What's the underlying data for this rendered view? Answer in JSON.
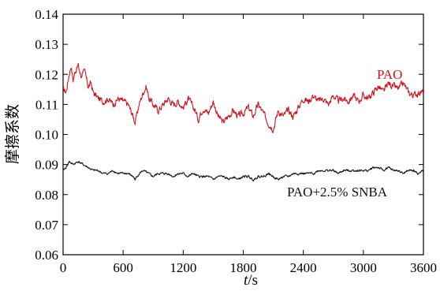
{
  "chart_data": {
    "type": "line",
    "xlabel": "t/s",
    "xlabel_italic": "t",
    "xlabel_rest": "/s",
    "ylabel": "摩擦系数",
    "xlim": [
      0,
      3600
    ],
    "ylim": [
      0.06,
      0.14
    ],
    "xticks": [
      0,
      600,
      1200,
      1800,
      2400,
      3000,
      3600
    ],
    "yticks": [
      0.06,
      0.07,
      0.08,
      0.09,
      0.1,
      0.11,
      0.12,
      0.13,
      0.14
    ],
    "yticklabels": [
      "0.06",
      "0.07",
      "0.08",
      "0.09",
      "0.10",
      "0.11",
      "0.12",
      "0.13",
      "0.14"
    ],
    "grid": false,
    "series": [
      {
        "name": "PAO",
        "color": "#d0141e",
        "x": [
          0,
          30,
          60,
          80,
          100,
          120,
          150,
          180,
          200,
          220,
          250,
          280,
          300,
          350,
          400,
          450,
          500,
          550,
          600,
          650,
          700,
          720,
          760,
          800,
          830,
          860,
          900,
          950,
          1000,
          1050,
          1100,
          1150,
          1200,
          1250,
          1280,
          1320,
          1350,
          1400,
          1450,
          1500,
          1550,
          1600,
          1650,
          1700,
          1750,
          1800,
          1850,
          1900,
          1950,
          2000,
          2050,
          2100,
          2150,
          2200,
          2250,
          2300,
          2350,
          2400,
          2450,
          2500,
          2550,
          2600,
          2650,
          2700,
          2750,
          2800,
          2850,
          2900,
          2950,
          3000,
          3050,
          3100,
          3150,
          3200,
          3250,
          3300,
          3350,
          3400,
          3450,
          3500,
          3550,
          3600
        ],
        "values": [
          0.115,
          0.114,
          0.12,
          0.123,
          0.118,
          0.121,
          0.123,
          0.119,
          0.122,
          0.12,
          0.116,
          0.117,
          0.114,
          0.112,
          0.111,
          0.112,
          0.11,
          0.112,
          0.111,
          0.11,
          0.106,
          0.104,
          0.11,
          0.114,
          0.116,
          0.112,
          0.11,
          0.108,
          0.11,
          0.112,
          0.11,
          0.111,
          0.109,
          0.112,
          0.11,
          0.108,
          0.105,
          0.109,
          0.107,
          0.111,
          0.106,
          0.104,
          0.106,
          0.108,
          0.106,
          0.107,
          0.109,
          0.106,
          0.11,
          0.107,
          0.104,
          0.102,
          0.108,
          0.106,
          0.108,
          0.106,
          0.109,
          0.112,
          0.111,
          0.113,
          0.111,
          0.112,
          0.11,
          0.113,
          0.111,
          0.112,
          0.111,
          0.113,
          0.111,
          0.113,
          0.112,
          0.114,
          0.116,
          0.114,
          0.117,
          0.116,
          0.115,
          0.117,
          0.114,
          0.113,
          0.114,
          0.114
        ]
      },
      {
        "name": "PAO+2.5% SNBA",
        "color": "#111111",
        "x": [
          0,
          30,
          60,
          100,
          150,
          200,
          250,
          300,
          350,
          400,
          450,
          500,
          550,
          600,
          650,
          700,
          720,
          760,
          800,
          850,
          900,
          950,
          1000,
          1050,
          1100,
          1150,
          1200,
          1250,
          1300,
          1350,
          1400,
          1450,
          1500,
          1550,
          1600,
          1650,
          1700,
          1750,
          1800,
          1850,
          1900,
          1950,
          2000,
          2050,
          2100,
          2150,
          2200,
          2250,
          2300,
          2350,
          2400,
          2450,
          2500,
          2550,
          2600,
          2650,
          2700,
          2750,
          2800,
          2850,
          2900,
          2950,
          3000,
          3050,
          3100,
          3150,
          3200,
          3250,
          3300,
          3350,
          3400,
          3450,
          3500,
          3550,
          3600
        ],
        "values": [
          0.088,
          0.089,
          0.091,
          0.09,
          0.091,
          0.09,
          0.089,
          0.088,
          0.088,
          0.087,
          0.087,
          0.088,
          0.087,
          0.087,
          0.087,
          0.086,
          0.085,
          0.087,
          0.088,
          0.087,
          0.086,
          0.087,
          0.087,
          0.087,
          0.086,
          0.087,
          0.087,
          0.086,
          0.087,
          0.086,
          0.086,
          0.086,
          0.085,
          0.086,
          0.086,
          0.085,
          0.086,
          0.085,
          0.086,
          0.086,
          0.085,
          0.086,
          0.086,
          0.087,
          0.086,
          0.085,
          0.086,
          0.086,
          0.087,
          0.087,
          0.087,
          0.087,
          0.087,
          0.088,
          0.088,
          0.088,
          0.088,
          0.087,
          0.088,
          0.088,
          0.088,
          0.088,
          0.088,
          0.088,
          0.089,
          0.089,
          0.088,
          0.089,
          0.088,
          0.088,
          0.087,
          0.088,
          0.088,
          0.087,
          0.088
        ]
      }
    ]
  }
}
